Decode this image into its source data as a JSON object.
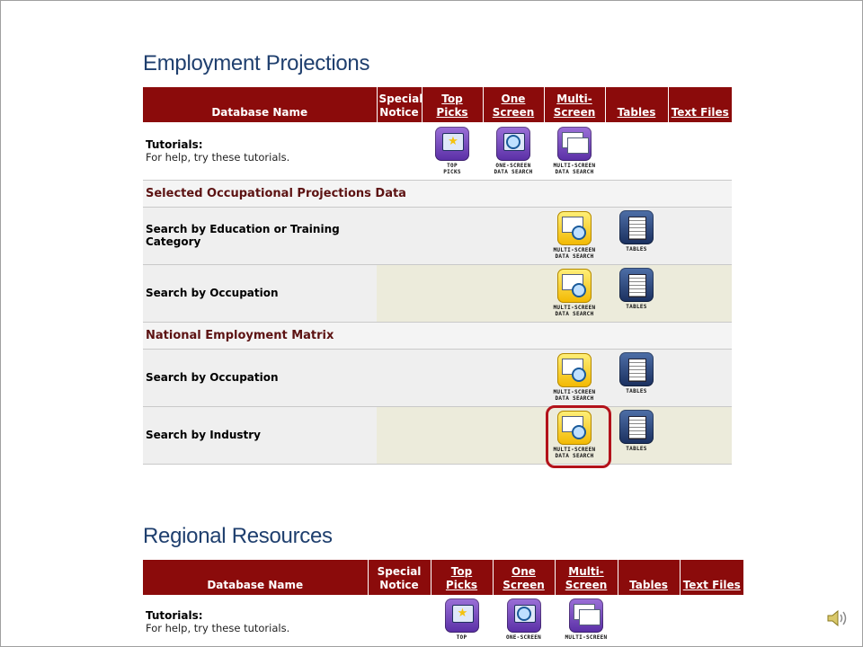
{
  "employment": {
    "title": "Employment Projections",
    "headers": {
      "database_name": "Database Name",
      "special_notice": [
        "Special",
        "Notice"
      ],
      "top_picks": [
        "Top",
        "Picks"
      ],
      "one_screen": [
        "One",
        "Screen"
      ],
      "multi_screen": [
        "Multi-",
        "Screen"
      ],
      "tables": "Tables",
      "text_files": "Text Files"
    },
    "tutorials": {
      "title": "Tutorials:",
      "subtitle": "For help, try these tutorials.",
      "icons": [
        {
          "icon": "top-picks-icon",
          "caption": [
            "TOP",
            "PICKS"
          ]
        },
        {
          "icon": "one-screen-icon",
          "caption": [
            "ONE-SCREEN",
            "DATA SEARCH"
          ]
        },
        {
          "icon": "multi-screen-icon",
          "caption": [
            "MULTI-SCREEN",
            "DATA SEARCH"
          ]
        }
      ]
    },
    "categories": [
      {
        "name": "Selected Occupational Projections Data",
        "rows": [
          {
            "label": "Search by Education or Training Category",
            "multi_caption": [
              "MULTI-SCREEN",
              "DATA SEARCH"
            ],
            "tables_caption": "TABLES"
          },
          {
            "label": "Search by Occupation",
            "multi_caption": [
              "MULTI-SCREEN",
              "DATA SEARCH"
            ],
            "tables_caption": "TABLES"
          }
        ]
      },
      {
        "name": "National Employment Matrix",
        "rows": [
          {
            "label": "Search by Occupation",
            "multi_caption": [
              "MULTI-SCREEN",
              "DATA SEARCH"
            ],
            "tables_caption": "TABLES"
          },
          {
            "label": "Search by Industry",
            "multi_caption": [
              "MULTI-SCREEN",
              "DATA SEARCH"
            ],
            "tables_caption": "TABLES"
          }
        ]
      }
    ]
  },
  "regional": {
    "title": "Regional Resources",
    "headers": {
      "database_name": "Database Name",
      "special_notice": [
        "Special",
        "Notice"
      ],
      "top_picks": [
        "Top",
        "Picks"
      ],
      "one_screen": [
        "One",
        "Screen"
      ],
      "multi_screen": [
        "Multi-",
        "Screen"
      ],
      "tables": "Tables",
      "text_files": "Text Files"
    },
    "tutorials": {
      "title": "Tutorials:",
      "subtitle": "For help, try these tutorials.",
      "captions": [
        "TOP",
        "ONE-SCREEN",
        "MULTI-SCREEN"
      ]
    }
  },
  "colors": {
    "header_bg": "#8b0b0b",
    "title": "#1f3f6e",
    "category_text": "#5c1212",
    "highlight": "#b3121a"
  }
}
